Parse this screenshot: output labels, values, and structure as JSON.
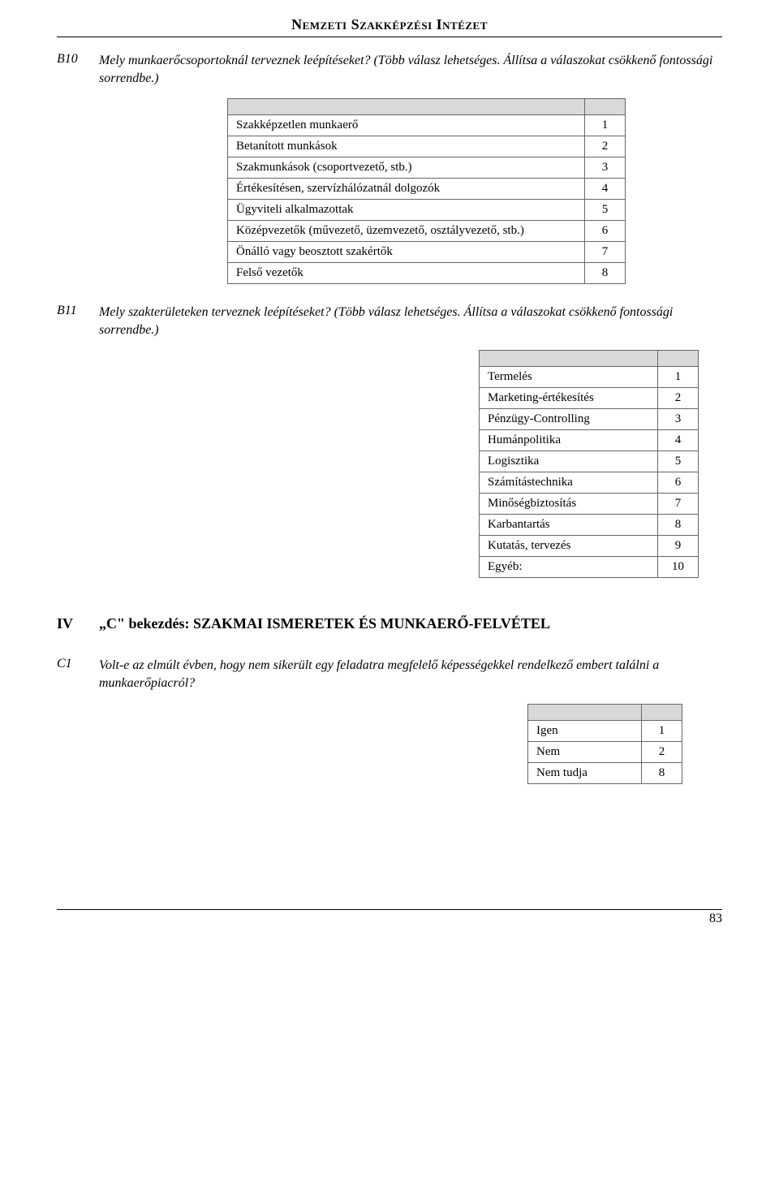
{
  "header": {
    "title": "Nemzeti Szakképzési Intézet"
  },
  "q_b10": {
    "num": "B10",
    "text": "Mely munkaerőcsoportoknál terveznek leépítéseket? (Több válasz lehetséges. Állítsa a válaszokat csökkenő fontossági sorrendbe.)",
    "table_left_margin": 210,
    "label_width": 440,
    "rows": [
      {
        "label": "Szakképzetlen munkaerő",
        "num": "1"
      },
      {
        "label": "Betanított munkások",
        "num": "2"
      },
      {
        "label": "Szakmunkások (csoportvezető, stb.)",
        "num": "3"
      },
      {
        "label": "Értékesítésen, szervízhálózatnál dolgozók",
        "num": "4"
      },
      {
        "label": "Ügyviteli alkalmazottak",
        "num": "5"
      },
      {
        "label": "Középvezetők (művezető, üzemvezető, osztályvezető, stb.)",
        "num": "6"
      },
      {
        "label": "Önálló vagy beosztott szakértők",
        "num": "7"
      },
      {
        "label": "Felső vezetők",
        "num": "8"
      }
    ]
  },
  "q_b11": {
    "num": "B11",
    "text": "Mely szakterületeken terveznek leépítéseket? (Több válasz lehetséges. Állítsa a válaszokat csökkenő fontossági sorrendbe.)",
    "table_left_margin": 520,
    "label_width": 220,
    "rows": [
      {
        "label": "Termelés",
        "num": "1"
      },
      {
        "label": "Marketing-értékesítés",
        "num": "2"
      },
      {
        "label": "Pénzügy-Controlling",
        "num": "3"
      },
      {
        "label": "Humánpolitika",
        "num": "4"
      },
      {
        "label": "Logisztika",
        "num": "5"
      },
      {
        "label": "Számítástechnika",
        "num": "6"
      },
      {
        "label": "Minőségbiztosítás",
        "num": "7"
      },
      {
        "label": "Karbantartás",
        "num": "8"
      },
      {
        "label": "Kutatás, tervezés",
        "num": "9"
      },
      {
        "label": "Egyéb:",
        "num": "10"
      }
    ]
  },
  "section_iv": {
    "num": "IV",
    "title": "„C\" bekezdés: SZAKMAI ISMERETEK ÉS MUNKAERŐ-FELVÉTEL"
  },
  "q_c1": {
    "num": "C1",
    "text": "Volt-e az elmúlt évben, hogy nem sikerült egy feladatra megfelelő képességekkel rendelkező embert találni a munkaerőpiacról?",
    "table_left_margin": 580,
    "label_width": 140,
    "rows": [
      {
        "label": "Igen",
        "num": "1"
      },
      {
        "label": "Nem",
        "num": "2"
      },
      {
        "label": "Nem tudja",
        "num": "8"
      }
    ]
  },
  "page_number": "83",
  "colors": {
    "header_row_bg": "#d9d9d9",
    "border": "#666666",
    "text": "#000000",
    "bg": "#ffffff"
  }
}
